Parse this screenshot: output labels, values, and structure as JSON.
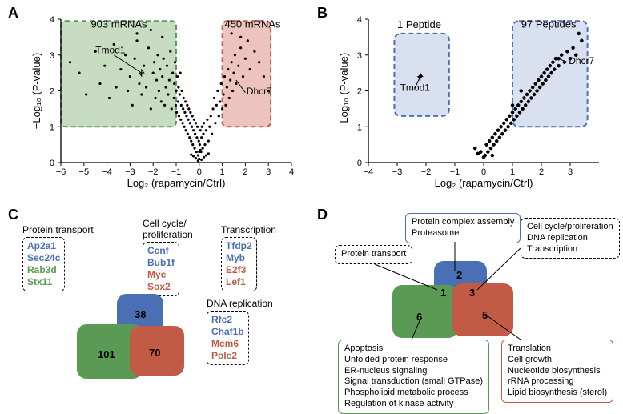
{
  "panels": {
    "A": "A",
    "B": "B",
    "C": "C",
    "D": "D"
  },
  "panelA": {
    "type": "scatter",
    "title_left": "903 mRNAs",
    "title_right": "450 mRNAs",
    "xlabel": "Log₂ (rapamycin/Ctrl)",
    "ylabel": "−Log₁₀ (P-value)",
    "xlim": [
      -6,
      4
    ],
    "ylim": [
      0,
      4
    ],
    "xtick_labels": [
      "−6",
      "−5",
      "−4",
      "−3",
      "−2",
      "−1",
      "0",
      "1",
      "2",
      "3",
      "4"
    ],
    "ytick_labels": [
      "0",
      "1",
      "2",
      "3",
      "4"
    ],
    "left_box_color": "#9bbf8e",
    "right_box_color": "#dc9186",
    "left_box_border": "#5a9a54",
    "right_box_border": "#c25b45",
    "callout_left": "Tmod1",
    "callout_right": "Dhcr7",
    "points": [
      [
        -5.6,
        2.8
      ],
      [
        -5.2,
        2.5
      ],
      [
        -4.9,
        1.9
      ],
      [
        -4.5,
        3.1
      ],
      [
        -4.3,
        2.2
      ],
      [
        -4.1,
        2.7
      ],
      [
        -3.9,
        1.8
      ],
      [
        -3.7,
        3.3
      ],
      [
        -3.6,
        2.1
      ],
      [
        -3.4,
        2.6
      ],
      [
        -3.2,
        3.0
      ],
      [
        -3.1,
        2.0
      ],
      [
        -3.0,
        2.4
      ],
      [
        -2.9,
        1.6
      ],
      [
        -2.8,
        2.9
      ],
      [
        -2.7,
        3.4
      ],
      [
        -2.6,
        2.2
      ],
      [
        -2.5,
        1.9
      ],
      [
        -2.4,
        2.7
      ],
      [
        -2.3,
        2.1
      ],
      [
        -2.2,
        3.2
      ],
      [
        -2.1,
        1.5
      ],
      [
        -2.0,
        2.5
      ],
      [
        -1.95,
        2.8
      ],
      [
        -1.9,
        1.8
      ],
      [
        -1.85,
        2.3
      ],
      [
        -1.8,
        3.0
      ],
      [
        -1.75,
        2.0
      ],
      [
        -1.7,
        2.6
      ],
      [
        -1.65,
        1.7
      ],
      [
        -1.6,
        2.4
      ],
      [
        -1.55,
        2.9
      ],
      [
        -1.5,
        1.6
      ],
      [
        -1.45,
        2.1
      ],
      [
        -1.4,
        2.7
      ],
      [
        -1.35,
        1.9
      ],
      [
        -1.3,
        2.3
      ],
      [
        -1.25,
        3.1
      ],
      [
        -1.2,
        1.5
      ],
      [
        -1.15,
        2.5
      ],
      [
        -1.1,
        1.8
      ],
      [
        -1.08,
        2.2
      ],
      [
        -1.05,
        2.8
      ],
      [
        -1.02,
        1.6
      ],
      [
        -1.0,
        2.0
      ],
      [
        -0.98,
        1.4
      ],
      [
        -0.95,
        2.4
      ],
      [
        -0.92,
        1.7
      ],
      [
        -0.9,
        2.1
      ],
      [
        -0.88,
        1.3
      ],
      [
        -0.85,
        1.9
      ],
      [
        -0.82,
        2.5
      ],
      [
        -0.8,
        1.2
      ],
      [
        -0.78,
        1.6
      ],
      [
        -0.75,
        2.0
      ],
      [
        -0.72,
        1.1
      ],
      [
        -0.7,
        1.5
      ],
      [
        -0.68,
        1.8
      ],
      [
        -0.65,
        1.0
      ],
      [
        -0.62,
        1.4
      ],
      [
        -0.6,
        1.7
      ],
      [
        -0.58,
        0.9
      ],
      [
        -0.55,
        1.3
      ],
      [
        -0.52,
        1.6
      ],
      [
        -0.5,
        0.8
      ],
      [
        -0.48,
        1.2
      ],
      [
        -0.45,
        1.5
      ],
      [
        -0.42,
        0.7
      ],
      [
        -0.4,
        1.1
      ],
      [
        -0.38,
        1.4
      ],
      [
        -0.35,
        0.6
      ],
      [
        -0.32,
        1.0
      ],
      [
        -0.3,
        1.3
      ],
      [
        -0.28,
        0.5
      ],
      [
        -0.25,
        0.9
      ],
      [
        -0.22,
        1.2
      ],
      [
        -0.2,
        0.4
      ],
      [
        -0.18,
        0.8
      ],
      [
        -0.15,
        1.1
      ],
      [
        -0.12,
        0.3
      ],
      [
        -0.1,
        0.7
      ],
      [
        -0.08,
        1.0
      ],
      [
        -0.05,
        0.2
      ],
      [
        -0.02,
        0.6
      ],
      [
        0,
        0.1
      ],
      [
        0.02,
        0.5
      ],
      [
        0.05,
        0.9
      ],
      [
        0.08,
        0.3
      ],
      [
        0.1,
        0.7
      ],
      [
        0.12,
        1.0
      ],
      [
        0.15,
        0.4
      ],
      [
        0.18,
        0.8
      ],
      [
        0.2,
        1.1
      ],
      [
        0.25,
        0.5
      ],
      [
        0.3,
        0.9
      ],
      [
        0.35,
        1.2
      ],
      [
        0.4,
        0.6
      ],
      [
        0.45,
        1.0
      ],
      [
        0.5,
        1.3
      ],
      [
        0.55,
        0.8
      ],
      [
        0.6,
        1.5
      ],
      [
        0.65,
        1.8
      ],
      [
        0.7,
        1.1
      ],
      [
        0.75,
        1.6
      ],
      [
        0.8,
        2.0
      ],
      [
        0.85,
        1.3
      ],
      [
        0.9,
        1.7
      ],
      [
        0.95,
        2.2
      ],
      [
        1.0,
        1.5
      ],
      [
        1.05,
        1.9
      ],
      [
        1.1,
        2.4
      ],
      [
        1.15,
        1.6
      ],
      [
        1.2,
        2.1
      ],
      [
        1.25,
        2.6
      ],
      [
        1.3,
        1.8
      ],
      [
        1.35,
        2.3
      ],
      [
        1.4,
        2.8
      ],
      [
        1.45,
        2.0
      ],
      [
        1.5,
        2.5
      ],
      [
        1.55,
        3.0
      ],
      [
        1.6,
        2.2
      ],
      [
        1.7,
        2.7
      ],
      [
        1.8,
        3.2
      ],
      [
        1.9,
        2.4
      ],
      [
        2.0,
        2.9
      ],
      [
        2.1,
        3.4
      ],
      [
        2.2,
        2.6
      ],
      [
        2.4,
        3.1
      ],
      [
        2.6,
        2.8
      ],
      [
        2.8,
        2.4
      ],
      [
        3.0,
        2.0
      ],
      [
        -2.7,
        3.6
      ],
      [
        -2.1,
        3.7
      ],
      [
        -1.6,
        3.5
      ],
      [
        1.4,
        3.6
      ],
      [
        1.8,
        3.5
      ],
      [
        -0.05,
        0.05
      ],
      [
        0.1,
        0.08
      ],
      [
        -0.15,
        0.12
      ],
      [
        0.2,
        0.15
      ],
      [
        -0.25,
        0.18
      ],
      [
        0.3,
        0.2
      ],
      [
        -0.35,
        0.22
      ],
      [
        0.4,
        0.25
      ],
      [
        0,
        0.3
      ],
      [
        0.05,
        0.35
      ]
    ]
  },
  "panelB": {
    "type": "scatter",
    "title_left": "1 Peptide",
    "title_right": "97 Peptides",
    "xlabel": "Log₂ (rapamycin/Ctrl)",
    "ylabel": "−Log₁₀ (P-value)",
    "xlim": [
      -4,
      4
    ],
    "ylim": [
      0,
      4
    ],
    "xtick_labels": [
      "−4",
      "−3",
      "−2",
      "−1",
      "0",
      "1",
      "2",
      "3"
    ],
    "ytick_labels": [
      "0",
      "1",
      "2",
      "3",
      "4"
    ],
    "left_box_color": "#b9c7e4",
    "right_box_color": "#b9c7e4",
    "box_border": "#4a6fb5",
    "callout_left": "Tmod1",
    "callout_right": "Dhcr7",
    "points": [
      [
        -2.2,
        2.4
      ],
      [
        -0.3,
        0.4
      ],
      [
        -0.1,
        0.3
      ],
      [
        0.05,
        0.2
      ],
      [
        0.1,
        0.5
      ],
      [
        0.15,
        0.3
      ],
      [
        0.2,
        0.6
      ],
      [
        0.25,
        0.4
      ],
      [
        0.3,
        0.7
      ],
      [
        0.35,
        0.5
      ],
      [
        0.4,
        0.8
      ],
      [
        0.45,
        0.6
      ],
      [
        0.5,
        0.9
      ],
      [
        0.55,
        0.7
      ],
      [
        0.6,
        1.0
      ],
      [
        0.65,
        0.8
      ],
      [
        0.7,
        1.1
      ],
      [
        0.75,
        0.9
      ],
      [
        0.8,
        1.2
      ],
      [
        0.85,
        1.0
      ],
      [
        0.9,
        1.3
      ],
      [
        0.95,
        1.1
      ],
      [
        1.0,
        1.4
      ],
      [
        1.05,
        1.2
      ],
      [
        1.1,
        1.5
      ],
      [
        1.15,
        1.3
      ],
      [
        1.2,
        1.6
      ],
      [
        1.25,
        1.4
      ],
      [
        1.3,
        1.7
      ],
      [
        1.35,
        1.5
      ],
      [
        1.4,
        1.8
      ],
      [
        1.45,
        1.6
      ],
      [
        1.5,
        1.9
      ],
      [
        1.55,
        1.7
      ],
      [
        1.6,
        2.0
      ],
      [
        1.65,
        1.8
      ],
      [
        1.7,
        2.1
      ],
      [
        1.75,
        1.9
      ],
      [
        1.8,
        2.2
      ],
      [
        1.85,
        2.0
      ],
      [
        1.9,
        2.3
      ],
      [
        1.95,
        2.1
      ],
      [
        2.0,
        2.4
      ],
      [
        2.05,
        2.2
      ],
      [
        2.1,
        2.5
      ],
      [
        2.15,
        2.3
      ],
      [
        2.2,
        2.6
      ],
      [
        2.25,
        2.4
      ],
      [
        2.3,
        2.7
      ],
      [
        2.35,
        2.5
      ],
      [
        2.4,
        2.8
      ],
      [
        2.45,
        2.6
      ],
      [
        2.5,
        2.9
      ],
      [
        2.6,
        2.7
      ],
      [
        2.7,
        3.0
      ],
      [
        2.8,
        2.8
      ],
      [
        2.9,
        3.1
      ],
      [
        3.0,
        2.9
      ],
      [
        3.1,
        3.2
      ],
      [
        3.2,
        3.0
      ],
      [
        3.4,
        3.4
      ],
      [
        3.3,
        3.6
      ],
      [
        2.6,
        2.9
      ],
      [
        1.0,
        1.6
      ],
      [
        1.3,
        2.0
      ],
      [
        0.3,
        0.2
      ],
      [
        0.0,
        0.15
      ],
      [
        -0.2,
        0.25
      ]
    ]
  },
  "panelC": {
    "categories": {
      "protein_transport": {
        "title": "Protein transport",
        "genes": [
          [
            "Ap2a1",
            "#4a6fb5"
          ],
          [
            "Sec24c",
            "#4a6fb5"
          ],
          [
            "Rab3d",
            "#5a9a54"
          ],
          [
            "Stx11",
            "#5a9a54"
          ]
        ]
      },
      "cell_cycle": {
        "title": "Cell cycle/\nproliferation",
        "genes": [
          [
            "Ccnf",
            "#4a6fb5"
          ],
          [
            "Bub1f",
            "#4a6fb5"
          ],
          [
            "Myc",
            "#c25b45"
          ],
          [
            "Sox2",
            "#c25b45"
          ]
        ]
      },
      "transcription": {
        "title": "Transcription",
        "genes": [
          [
            "Tfdp2",
            "#4a6fb5"
          ],
          [
            "Myb",
            "#4a6fb5"
          ],
          [
            "E2f3",
            "#c25b45"
          ],
          [
            "Lef1",
            "#c25b45"
          ]
        ]
      },
      "dna_replication": {
        "title": "DNA replication",
        "genes": [
          [
            "Rfc2",
            "#4a6fb5"
          ],
          [
            "Chaf1b",
            "#4a6fb5"
          ],
          [
            "Mcm6",
            "#c25b45"
          ],
          [
            "Pole2",
            "#c25b45"
          ]
        ]
      }
    },
    "venn": {
      "green": 101,
      "blue": 38,
      "red": 70
    },
    "colors": {
      "green": "#5a9a54",
      "blue": "#4a6fb5",
      "red": "#c25b45"
    }
  },
  "panelD": {
    "venn": {
      "green_only": 6,
      "blue_only": 2,
      "red_only": 5,
      "green_blue": 1,
      "blue_red": 3
    },
    "colors": {
      "green": "#5a9a54",
      "blue": "#4a6fb5",
      "red": "#c25b45"
    },
    "go_blue": {
      "border": "#4a6fb5",
      "items": [
        "Protein complex assembly",
        "Proteasome"
      ]
    },
    "go_blackdash": {
      "border": "#000",
      "items": [
        "Protein transport"
      ]
    },
    "go_blackdash2": {
      "border": "#000",
      "items": [
        "Cell cycle/proliferation",
        "DNA replication",
        "Transcription"
      ]
    },
    "go_green": {
      "border": "#5a9a54",
      "items": [
        "Apoptosis",
        "Unfolded protein response",
        "ER-nucleus signaling",
        "Signal transduction (small GTPase)",
        "Phospholipid metabolic process",
        "Regulation of kinase activity"
      ]
    },
    "go_red": {
      "border": "#c25b45",
      "items": [
        "Translation",
        "Cell growth",
        "Nucleotide biosynthesis",
        "rRNA processing",
        "Lipid biosynthesis (sterol)"
      ]
    }
  }
}
